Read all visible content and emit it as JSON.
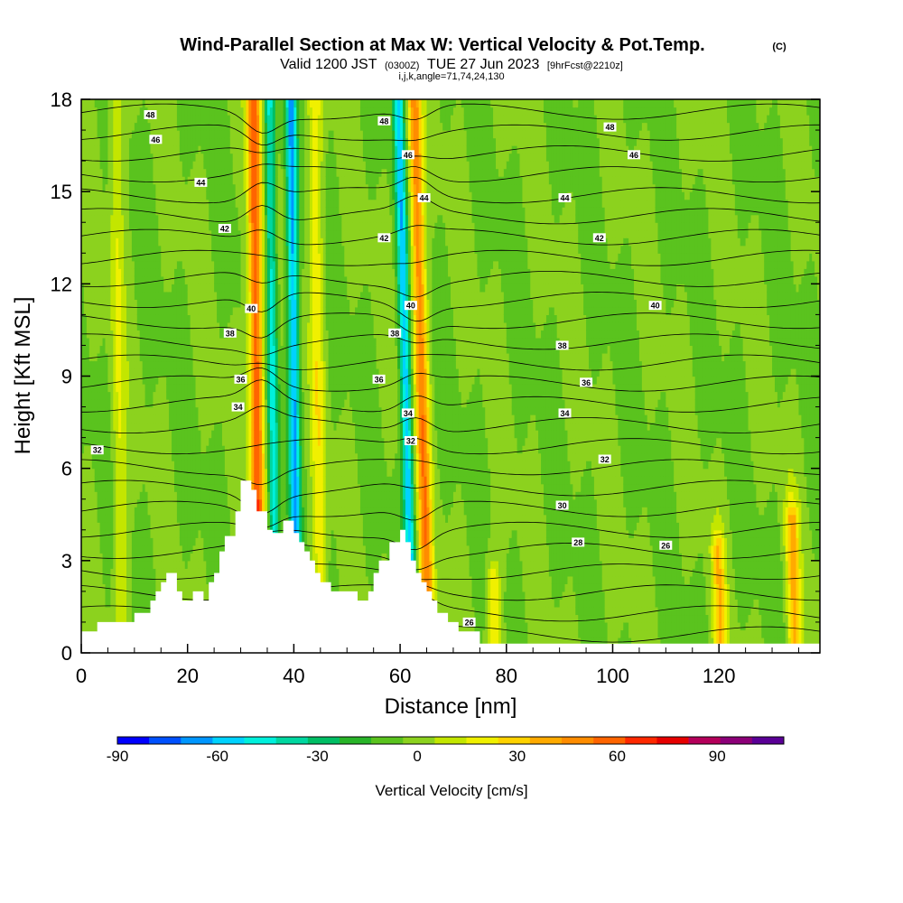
{
  "chart_data": {
    "type": "heatmap",
    "title": {
      "main": "Wind-Parallel Section at Max W: Vertical Velocity & Pot.Temp.",
      "copyright": "(C)",
      "valid_prefix": "Valid 1200 JST",
      "valid_utc": "(0300Z)",
      "valid_date": "TUE 27 Jun 2023",
      "forecast": "[9hrFcst@2210z]",
      "indices": "i,j,k,angle=71,74,24,130"
    },
    "xlabel": "Distance [nm]",
    "ylabel": "Height [Kft MSL]",
    "xlim": [
      0,
      139
    ],
    "ylim": [
      0,
      18
    ],
    "x_ticks": [
      "0",
      "20",
      "40",
      "60",
      "80",
      "100",
      "120"
    ],
    "y_ticks": [
      "0",
      "3",
      "6",
      "9",
      "12",
      "15",
      "18"
    ],
    "colorbar": {
      "label": "Vertical Velocity [cm/s]",
      "range": [
        -90,
        110
      ],
      "step": 10,
      "tick_labels": [
        "-90",
        "-60",
        "-30",
        "0",
        "30",
        "60",
        "90"
      ],
      "colors": [
        "#0000ff",
        "#0050ff",
        "#0096ff",
        "#00d2ff",
        "#00f0dc",
        "#00d7a0",
        "#00be64",
        "#28b428",
        "#5ac31e",
        "#8cd21e",
        "#c3e600",
        "#f0f000",
        "#ffd200",
        "#ffaa00",
        "#ff8c00",
        "#ff6400",
        "#ff2800",
        "#e60000",
        "#b4005a",
        "#8c0078",
        "#5a0096"
      ]
    },
    "updraft_bands": [
      {
        "x": 33,
        "peak_cm_s": 70,
        "top_kft": 18
      },
      {
        "x": 44.5,
        "peak_cm_s": 25,
        "top_kft": 18
      },
      {
        "x": 64,
        "peak_cm_s": 55,
        "top_kft": 18
      },
      {
        "x": 7,
        "peak_cm_s": 20,
        "top_kft": 18
      },
      {
        "x": 76.5,
        "peak_cm_s": 30,
        "top_kft": 2.5
      },
      {
        "x": 119,
        "peak_cm_s": 35,
        "top_kft": 3.5
      },
      {
        "x": 133,
        "peak_cm_s": 40,
        "top_kft": 4.5
      }
    ],
    "downdraft_bands": [
      {
        "x": 40,
        "peak_cm_s": -60
      },
      {
        "x": 61,
        "peak_cm_s": -55
      },
      {
        "x": 36,
        "peak_cm_s": -45
      }
    ],
    "theta_contour_labels": [
      {
        "value": "48",
        "x": 13,
        "y": 17.5
      },
      {
        "value": "46",
        "x": 14,
        "y": 16.7
      },
      {
        "value": "44",
        "x": 22.5,
        "y": 15.3
      },
      {
        "value": "42",
        "x": 27,
        "y": 13.8
      },
      {
        "value": "40",
        "x": 32,
        "y": 11.2
      },
      {
        "value": "38",
        "x": 28,
        "y": 10.4
      },
      {
        "value": "36",
        "x": 30,
        "y": 8.9
      },
      {
        "value": "34",
        "x": 29.5,
        "y": 8.0
      },
      {
        "value": "32",
        "x": 3,
        "y": 6.6
      },
      {
        "value": "48",
        "x": 57,
        "y": 17.3
      },
      {
        "value": "46",
        "x": 61.5,
        "y": 16.2
      },
      {
        "value": "44",
        "x": 64.5,
        "y": 14.8
      },
      {
        "value": "42",
        "x": 57,
        "y": 13.5
      },
      {
        "value": "40",
        "x": 62,
        "y": 11.3
      },
      {
        "value": "38",
        "x": 59,
        "y": 10.4
      },
      {
        "value": "36",
        "x": 56,
        "y": 8.9
      },
      {
        "value": "34",
        "x": 61.5,
        "y": 7.8
      },
      {
        "value": "32",
        "x": 62,
        "y": 6.9
      },
      {
        "value": "48",
        "x": 99.5,
        "y": 17.1
      },
      {
        "value": "46",
        "x": 104,
        "y": 16.2
      },
      {
        "value": "44",
        "x": 91,
        "y": 14.8
      },
      {
        "value": "42",
        "x": 97.5,
        "y": 13.5
      },
      {
        "value": "40",
        "x": 108,
        "y": 11.3
      },
      {
        "value": "38",
        "x": 90.5,
        "y": 10.0
      },
      {
        "value": "36",
        "x": 95,
        "y": 8.8
      },
      {
        "value": "34",
        "x": 91,
        "y": 7.8
      },
      {
        "value": "32",
        "x": 98.5,
        "y": 6.3
      },
      {
        "value": "30",
        "x": 90.5,
        "y": 4.8
      },
      {
        "value": "28",
        "x": 93.5,
        "y": 3.6
      },
      {
        "value": "26",
        "x": 110,
        "y": 3.5
      },
      {
        "value": "26",
        "x": 73,
        "y": 1.0
      }
    ]
  }
}
